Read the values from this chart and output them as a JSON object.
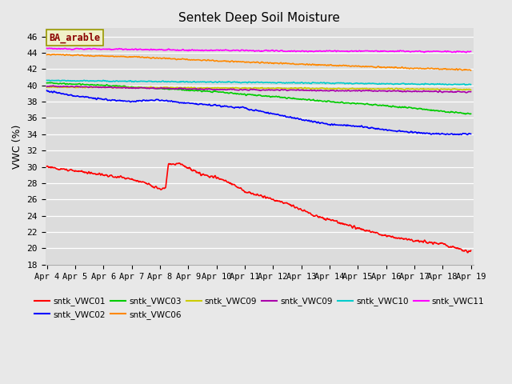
{
  "title": "Sentek Deep Soil Moisture",
  "ylabel": "VWC (%)",
  "ylim": [
    18,
    47
  ],
  "yticks": [
    18,
    20,
    22,
    24,
    26,
    28,
    30,
    32,
    34,
    36,
    38,
    40,
    42,
    44,
    46
  ],
  "annotation": "BA_arable",
  "plot_bg_color": "#dcdcdc",
  "fig_bg_color": "#e8e8e8",
  "n_points": 900,
  "x_start_day": 4,
  "x_end_day": 19,
  "xtick_days": [
    4,
    5,
    6,
    7,
    8,
    9,
    10,
    11,
    12,
    13,
    14,
    15,
    16,
    17,
    18,
    19
  ],
  "series": [
    {
      "key": "sntk_VWC01",
      "color": "#ff0000",
      "label": "sntk_VWC01",
      "waypoints": [
        [
          0,
          30.0
        ],
        [
          3,
          28.5
        ],
        [
          3.5,
          28.0
        ],
        [
          4.0,
          27.3
        ],
        [
          4.2,
          27.3
        ],
        [
          4.3,
          30.3
        ],
        [
          4.7,
          30.4
        ],
        [
          5.5,
          29.0
        ],
        [
          6.0,
          28.7
        ],
        [
          6.5,
          28.0
        ],
        [
          7.0,
          27.0
        ],
        [
          7.5,
          26.5
        ],
        [
          8.5,
          25.5
        ],
        [
          9.5,
          24.0
        ],
        [
          10.0,
          23.5
        ],
        [
          11.0,
          22.5
        ],
        [
          12.0,
          21.5
        ],
        [
          13.0,
          21.0
        ],
        [
          14.0,
          20.5
        ],
        [
          14.5,
          20.0
        ],
        [
          15,
          19.5
        ]
      ]
    },
    {
      "key": "sntk_VWC02",
      "color": "#0000ff",
      "label": "sntk_VWC02",
      "waypoints": [
        [
          0,
          39.3
        ],
        [
          1,
          38.7
        ],
        [
          2,
          38.3
        ],
        [
          3,
          38.0
        ],
        [
          3.5,
          38.2
        ],
        [
          4,
          38.2
        ],
        [
          5,
          37.8
        ],
        [
          6,
          37.5
        ],
        [
          7,
          37.2
        ],
        [
          8,
          36.5
        ],
        [
          9,
          35.8
        ],
        [
          10,
          35.2
        ],
        [
          11,
          35.0
        ],
        [
          12,
          34.5
        ],
        [
          13,
          34.2
        ],
        [
          14,
          34.0
        ],
        [
          15,
          34.0
        ]
      ]
    },
    {
      "key": "sntk_VWC03",
      "color": "#00cc00",
      "label": "sntk_VWC03",
      "waypoints": [
        [
          0,
          40.3
        ],
        [
          2,
          40.0
        ],
        [
          4,
          39.6
        ],
        [
          6,
          39.2
        ],
        [
          8,
          38.6
        ],
        [
          10,
          38.0
        ],
        [
          12,
          37.5
        ],
        [
          13,
          37.2
        ],
        [
          14,
          36.8
        ],
        [
          15,
          36.5
        ]
      ]
    },
    {
      "key": "sntk_VWC06",
      "color": "#ff8800",
      "label": "sntk_VWC06",
      "waypoints": [
        [
          0,
          43.8
        ],
        [
          3,
          43.5
        ],
        [
          6,
          43.0
        ],
        [
          9,
          42.6
        ],
        [
          12,
          42.2
        ],
        [
          15,
          41.9
        ]
      ]
    },
    {
      "key": "sntk_VWC09_y",
      "color": "#cccc00",
      "label": "sntk_VWC09",
      "waypoints": [
        [
          0,
          39.8
        ],
        [
          5,
          39.7
        ],
        [
          10,
          39.6
        ],
        [
          15,
          39.5
        ]
      ]
    },
    {
      "key": "sntk_VWC09_p",
      "color": "#aa00aa",
      "label": "sntk_VWC09",
      "waypoints": [
        [
          0,
          39.9
        ],
        [
          3,
          39.7
        ],
        [
          6,
          39.5
        ],
        [
          9,
          39.4
        ],
        [
          12,
          39.3
        ],
        [
          15,
          39.2
        ]
      ]
    },
    {
      "key": "sntk_VWC10",
      "color": "#00cccc",
      "label": "sntk_VWC10",
      "waypoints": [
        [
          0,
          40.6
        ],
        [
          3,
          40.5
        ],
        [
          6,
          40.4
        ],
        [
          9,
          40.3
        ],
        [
          12,
          40.2
        ],
        [
          15,
          40.1
        ]
      ]
    },
    {
      "key": "sntk_VWC11",
      "color": "#ff00ff",
      "label": "sntk_VWC11",
      "waypoints": [
        [
          0,
          44.5
        ],
        [
          3,
          44.4
        ],
        [
          6,
          44.3
        ],
        [
          9,
          44.2
        ],
        [
          12,
          44.2
        ],
        [
          15,
          44.1
        ]
      ]
    }
  ],
  "legend": [
    {
      "label": "sntk_VWC01",
      "color": "#ff0000"
    },
    {
      "label": "sntk_VWC02",
      "color": "#0000ff"
    },
    {
      "label": "sntk_VWC03",
      "color": "#00cc00"
    },
    {
      "label": "sntk_VWC06",
      "color": "#ff8800"
    },
    {
      "label": "sntk_VWC09",
      "color": "#cccc00"
    },
    {
      "label": "sntk_VWC09",
      "color": "#aa00aa"
    },
    {
      "label": "sntk_VWC10",
      "color": "#00cccc"
    },
    {
      "label": "sntk_VWC11",
      "color": "#ff00ff"
    }
  ]
}
